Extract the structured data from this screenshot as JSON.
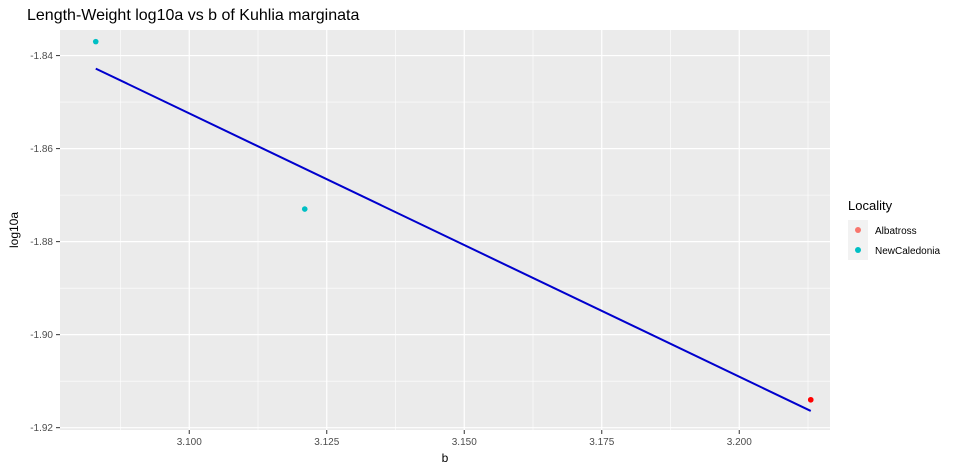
{
  "chart_data": {
    "type": "scatter",
    "title": "Length-Weight log10a vs b of Kuhlia marginata",
    "xlabel": "b",
    "ylabel": "log10a",
    "xlim": [
      3.0765,
      3.2165
    ],
    "ylim": [
      -1.9205,
      -1.8345
    ],
    "x_ticks": [
      3.1,
      3.125,
      3.15,
      3.175,
      3.2
    ],
    "x_tick_labels": [
      "3.100",
      "3.125",
      "3.150",
      "3.175",
      "3.200"
    ],
    "y_ticks": [
      -1.84,
      -1.86,
      -1.88,
      -1.9,
      -1.92
    ],
    "y_tick_labels": [
      "-1.84",
      "-1.86",
      "-1.88",
      "-1.90",
      "-1.92"
    ],
    "grid": true,
    "legend": {
      "title": "Locality",
      "position": "right",
      "entries": [
        {
          "label": "Albatross",
          "color": "#F8766D"
        },
        {
          "label": "NewCaledonia",
          "color": "#00BFC4"
        }
      ]
    },
    "series": [
      {
        "name": "Albatross",
        "color": "#F8766D",
        "points": [
          {
            "x": 3.213,
            "y": -1.914
          }
        ]
      },
      {
        "name": "NewCaledonia",
        "color": "#00BFC4",
        "points": [
          {
            "x": 3.083,
            "y": -1.837
          },
          {
            "x": 3.121,
            "y": -1.873
          }
        ]
      }
    ],
    "extra_points": [
      {
        "x": 3.213,
        "y": -1.914,
        "color": "#FF0000"
      }
    ],
    "regression_line": {
      "color": "#0000CD",
      "x": [
        3.083,
        3.213
      ],
      "y": [
        -1.8428,
        -1.9164
      ]
    }
  }
}
